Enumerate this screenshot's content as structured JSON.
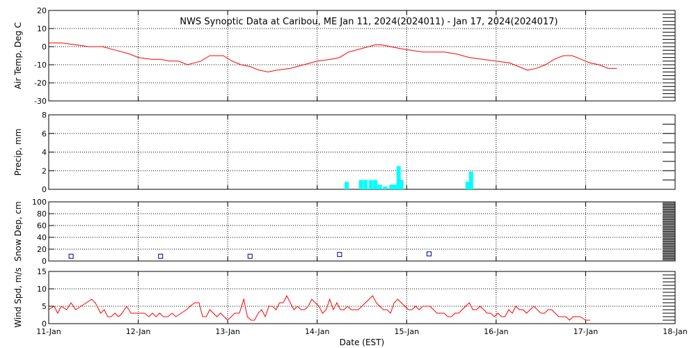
{
  "title": "NWS Synoptic Data at Caribou, ME   Jan 11, 2024(2024011) - Jan 17, 2024(2024017)",
  "xlabel": "Date (EST)",
  "x_ticks": [
    "11-Jan",
    "12-Jan",
    "13-Jan",
    "14-Jan",
    "15-Jan",
    "16-Jan",
    "17-Jan",
    "18-Jan"
  ],
  "colors": {
    "line": "#ff0000",
    "precip": "#00ffff",
    "snow": "#000080",
    "grid": "#000000"
  },
  "chart_data": [
    {
      "type": "line",
      "ylabel": "Air Temp, Deg C",
      "ylim": [
        -30,
        20
      ],
      "yticks": [
        20,
        10,
        0,
        -10,
        -20,
        -30
      ],
      "grid": true,
      "x_unit": "days since 11-Jan",
      "points": [
        [
          0,
          2
        ],
        [
          0.15,
          2
        ],
        [
          0.3,
          1
        ],
        [
          0.45,
          0
        ],
        [
          0.6,
          0
        ],
        [
          0.75,
          -2
        ],
        [
          0.9,
          -4
        ],
        [
          1.0,
          -6
        ],
        [
          1.15,
          -7
        ],
        [
          1.25,
          -7
        ],
        [
          1.35,
          -8
        ],
        [
          1.45,
          -8
        ],
        [
          1.55,
          -10
        ],
        [
          1.7,
          -8
        ],
        [
          1.8,
          -5
        ],
        [
          1.95,
          -5
        ],
        [
          2.05,
          -8
        ],
        [
          2.15,
          -10
        ],
        [
          2.25,
          -11
        ],
        [
          2.35,
          -13
        ],
        [
          2.45,
          -14
        ],
        [
          2.55,
          -13
        ],
        [
          2.7,
          -12
        ],
        [
          2.85,
          -10
        ],
        [
          3.0,
          -8
        ],
        [
          3.15,
          -7
        ],
        [
          3.25,
          -6
        ],
        [
          3.35,
          -3
        ],
        [
          3.5,
          -1
        ],
        [
          3.65,
          1
        ],
        [
          3.72,
          1
        ],
        [
          3.82,
          0
        ],
        [
          3.92,
          -1
        ],
        [
          4.05,
          -2
        ],
        [
          4.18,
          -3
        ],
        [
          4.3,
          -3
        ],
        [
          4.42,
          -3
        ],
        [
          4.55,
          -4
        ],
        [
          4.7,
          -6
        ],
        [
          4.85,
          -7
        ],
        [
          5.0,
          -8
        ],
        [
          5.15,
          -9
        ],
        [
          5.25,
          -11
        ],
        [
          5.35,
          -13
        ],
        [
          5.45,
          -12
        ],
        [
          5.55,
          -10
        ],
        [
          5.65,
          -7
        ],
        [
          5.75,
          -5
        ],
        [
          5.85,
          -5
        ],
        [
          5.95,
          -7
        ],
        [
          6.05,
          -9
        ],
        [
          6.15,
          -10
        ],
        [
          6.25,
          -12
        ],
        [
          6.35,
          -12
        ]
      ]
    },
    {
      "type": "bar",
      "ylabel": "Precip, mm",
      "ylim": [
        0,
        8
      ],
      "yticks": [
        8,
        6,
        4,
        2,
        0
      ],
      "grid": true,
      "x_unit": "days since 11-Jan",
      "bars": [
        [
          3.33,
          0.8
        ],
        [
          3.49,
          1.0
        ],
        [
          3.54,
          1.0
        ],
        [
          3.6,
          1.0
        ],
        [
          3.65,
          1.0
        ],
        [
          3.7,
          0.5
        ],
        [
          3.76,
          0.3
        ],
        [
          3.83,
          0.5
        ],
        [
          3.87,
          0.5
        ],
        [
          3.91,
          2.5
        ],
        [
          3.94,
          1.0
        ],
        [
          4.68,
          0.8
        ],
        [
          4.72,
          1.9
        ]
      ]
    },
    {
      "type": "scatter",
      "ylabel": "Snow Dep, cm",
      "ylim": [
        0,
        100
      ],
      "yticks": [
        100,
        80,
        60,
        40,
        20,
        0
      ],
      "grid": true,
      "x_unit": "days since 11-Jan",
      "points": [
        [
          0.25,
          8
        ],
        [
          1.25,
          8
        ],
        [
          2.25,
          8
        ],
        [
          3.25,
          11
        ],
        [
          4.25,
          12
        ]
      ]
    },
    {
      "type": "line",
      "ylabel": "Wind Spd, m/s",
      "ylim": [
        0,
        15
      ],
      "yticks": [
        15,
        10,
        5,
        0
      ],
      "grid": true,
      "x_unit": "days since 11-Jan",
      "points": [
        [
          0,
          4
        ],
        [
          0.06,
          5
        ],
        [
          0.1,
          3
        ],
        [
          0.14,
          5
        ],
        [
          0.2,
          4
        ],
        [
          0.25,
          6
        ],
        [
          0.3,
          4
        ],
        [
          0.36,
          5
        ],
        [
          0.42,
          6
        ],
        [
          0.48,
          7
        ],
        [
          0.52,
          6
        ],
        [
          0.58,
          3
        ],
        [
          0.62,
          4
        ],
        [
          0.66,
          2
        ],
        [
          0.7,
          2
        ],
        [
          0.74,
          3
        ],
        [
          0.78,
          2
        ],
        [
          0.82,
          3
        ],
        [
          0.87,
          5
        ],
        [
          0.92,
          3
        ],
        [
          0.97,
          3
        ],
        [
          1.02,
          3
        ],
        [
          1.07,
          3
        ],
        [
          1.12,
          2
        ],
        [
          1.16,
          3
        ],
        [
          1.2,
          2
        ],
        [
          1.24,
          3
        ],
        [
          1.28,
          2
        ],
        [
          1.33,
          2
        ],
        [
          1.38,
          3
        ],
        [
          1.42,
          2
        ],
        [
          1.48,
          3
        ],
        [
          1.54,
          4
        ],
        [
          1.58,
          5
        ],
        [
          1.63,
          6
        ],
        [
          1.68,
          6
        ],
        [
          1.72,
          2
        ],
        [
          1.76,
          2
        ],
        [
          1.8,
          4
        ],
        [
          1.84,
          3
        ],
        [
          1.88,
          2
        ],
        [
          1.92,
          3
        ],
        [
          1.96,
          2
        ],
        [
          2.0,
          1
        ],
        [
          2.04,
          2
        ],
        [
          2.08,
          3
        ],
        [
          2.13,
          3
        ],
        [
          2.18,
          7
        ],
        [
          2.22,
          2
        ],
        [
          2.26,
          1
        ],
        [
          2.3,
          1
        ],
        [
          2.34,
          3
        ],
        [
          2.38,
          4
        ],
        [
          2.42,
          2
        ],
        [
          2.46,
          5
        ],
        [
          2.5,
          5
        ],
        [
          2.54,
          4
        ],
        [
          2.58,
          6
        ],
        [
          2.62,
          6
        ],
        [
          2.66,
          8
        ],
        [
          2.7,
          6
        ],
        [
          2.74,
          4
        ],
        [
          2.78,
          5
        ],
        [
          2.82,
          4
        ],
        [
          2.86,
          4
        ],
        [
          2.9,
          5
        ],
        [
          2.94,
          7
        ],
        [
          2.98,
          6
        ],
        [
          3.02,
          5
        ],
        [
          3.06,
          3
        ],
        [
          3.1,
          4
        ],
        [
          3.14,
          7
        ],
        [
          3.18,
          4
        ],
        [
          3.22,
          6
        ],
        [
          3.26,
          4
        ],
        [
          3.3,
          4
        ],
        [
          3.34,
          5
        ],
        [
          3.38,
          4
        ],
        [
          3.42,
          4
        ],
        [
          3.46,
          4
        ],
        [
          3.5,
          5
        ],
        [
          3.54,
          6
        ],
        [
          3.58,
          7
        ],
        [
          3.62,
          8
        ],
        [
          3.66,
          6
        ],
        [
          3.7,
          5
        ],
        [
          3.74,
          4
        ],
        [
          3.78,
          4
        ],
        [
          3.82,
          3
        ],
        [
          3.86,
          6
        ],
        [
          3.9,
          7
        ],
        [
          3.94,
          6
        ],
        [
          3.98,
          5
        ],
        [
          4.02,
          4
        ],
        [
          4.06,
          4
        ],
        [
          4.1,
          5
        ],
        [
          4.14,
          4
        ],
        [
          4.18,
          5
        ],
        [
          4.22,
          5
        ],
        [
          4.26,
          5
        ],
        [
          4.3,
          4
        ],
        [
          4.34,
          3
        ],
        [
          4.38,
          3
        ],
        [
          4.42,
          3
        ],
        [
          4.46,
          2
        ],
        [
          4.5,
          2
        ],
        [
          4.54,
          3
        ],
        [
          4.58,
          3
        ],
        [
          4.62,
          4
        ],
        [
          4.66,
          5
        ],
        [
          4.7,
          6
        ],
        [
          4.74,
          4
        ],
        [
          4.78,
          4
        ],
        [
          4.82,
          5
        ],
        [
          4.86,
          4
        ],
        [
          4.9,
          3
        ],
        [
          4.94,
          3
        ],
        [
          4.98,
          2
        ],
        [
          5.02,
          3
        ],
        [
          5.06,
          2
        ],
        [
          5.1,
          2
        ],
        [
          5.14,
          4
        ],
        [
          5.18,
          3
        ],
        [
          5.22,
          5
        ],
        [
          5.26,
          4
        ],
        [
          5.3,
          4
        ],
        [
          5.34,
          3
        ],
        [
          5.38,
          4
        ],
        [
          5.42,
          5
        ],
        [
          5.46,
          4
        ],
        [
          5.5,
          3
        ],
        [
          5.54,
          3
        ],
        [
          5.58,
          4
        ],
        [
          5.62,
          4
        ],
        [
          5.66,
          3
        ],
        [
          5.7,
          2
        ],
        [
          5.74,
          2
        ],
        [
          5.78,
          2
        ],
        [
          5.82,
          1
        ],
        [
          5.86,
          2
        ],
        [
          5.9,
          2
        ],
        [
          5.94,
          2
        ],
        [
          6.0,
          1
        ],
        [
          6.05,
          1
        ]
      ]
    }
  ]
}
